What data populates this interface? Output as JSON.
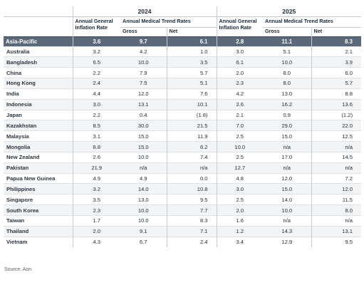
{
  "table": {
    "years": [
      "2024",
      "2025"
    ],
    "header_inflation": [
      "Annual General",
      "Inflation Rate"
    ],
    "header_medical": "Annual Medical Trend Rates",
    "header_gross": "Gross",
    "header_net": "Net",
    "region": {
      "name": "Asia-Pacific",
      "values": [
        "3.6",
        "9.7",
        "6.1",
        "2.8",
        "11.1",
        "8.3"
      ]
    },
    "rows": [
      {
        "country": "Australia",
        "values": [
          "3.2",
          "4.2",
          "1.0",
          "3.0",
          "5.1",
          "2.1"
        ]
      },
      {
        "country": "Bangladesh",
        "values": [
          "6.5",
          "10.0",
          "3.5",
          "6.1",
          "10.0",
          "3.9"
        ]
      },
      {
        "country": "China",
        "values": [
          "2.2",
          "7.9",
          "5.7",
          "2.0",
          "8.0",
          "6.0"
        ]
      },
      {
        "country": "Hong Kong",
        "values": [
          "2.4",
          "7.5",
          "5.1",
          "2.3",
          "8.0",
          "5.7"
        ]
      },
      {
        "country": "India",
        "values": [
          "4.4",
          "12.0",
          "7.6",
          "4.2",
          "13.0",
          "8.8"
        ]
      },
      {
        "country": "Indonesia",
        "values": [
          "3.0",
          "13.1",
          "10.1",
          "2.6",
          "16.2",
          "13.6"
        ]
      },
      {
        "country": "Japan",
        "values": [
          "2.2",
          "0.4",
          "(1.8)",
          "2.1",
          "0.9",
          "(1.2)"
        ]
      },
      {
        "country": "Kazakhstan",
        "values": [
          "8.5",
          "30.0",
          "21.5",
          "7.0",
          "29.0",
          "22.0"
        ]
      },
      {
        "country": "Malaysia",
        "values": [
          "3.1",
          "15.0",
          "11.9",
          "2.5",
          "15.0",
          "12.5"
        ]
      },
      {
        "country": "Mongolia",
        "values": [
          "8.8",
          "15.0",
          "6.2",
          "10.0",
          "n/a",
          "n/a"
        ]
      },
      {
        "country": "New Zealand",
        "values": [
          "2.6",
          "10.0",
          "7.4",
          "2.5",
          "17.0",
          "14.5"
        ]
      },
      {
        "country": "Pakistan",
        "values": [
          "21.9",
          "n/a",
          "n/a",
          "12.7",
          "n/a",
          "n/a"
        ]
      },
      {
        "country": "Papua New Guinea",
        "values": [
          "4.9",
          "4.9",
          "0.0",
          "4.8",
          "12.0",
          "7.2"
        ]
      },
      {
        "country": "Philippines",
        "values": [
          "3.2",
          "14.0",
          "10.8",
          "3.0",
          "15.0",
          "12.0"
        ]
      },
      {
        "country": "Singapore",
        "values": [
          "3.5",
          "13.0",
          "9.5",
          "2.5",
          "14.0",
          "11.5"
        ]
      },
      {
        "country": "South Korea",
        "values": [
          "2.3",
          "10.0",
          "7.7",
          "2.0",
          "10.0",
          "8.0"
        ]
      },
      {
        "country": "Taiwan",
        "values": [
          "1.7",
          "10.0",
          "8.3",
          "1.6",
          "n/a",
          "n/a"
        ]
      },
      {
        "country": "Thailand",
        "values": [
          "2.0",
          "9.1",
          "7.1",
          "1.2",
          "14.3",
          "13.1"
        ]
      },
      {
        "country": "Vietnam",
        "values": [
          "4.3",
          "6.7",
          "2.4",
          "3.4",
          "12.9",
          "9.5"
        ]
      }
    ]
  },
  "source": "Source: Aon"
}
